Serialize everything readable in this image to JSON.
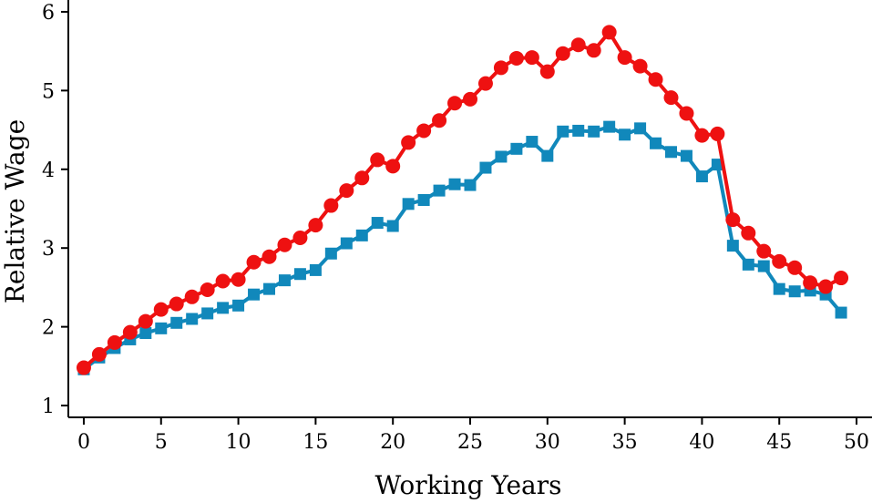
{
  "chart_data": {
    "type": "line",
    "xlabel": "Working Years",
    "ylabel": "Relative Wage",
    "xlim": [
      -1,
      51
    ],
    "ylim": [
      0.85,
      6.15
    ],
    "xticks": [
      0,
      5,
      10,
      15,
      20,
      25,
      30,
      35,
      40,
      45,
      50
    ],
    "yticks": [
      1,
      2,
      3,
      4,
      5,
      6
    ],
    "grid": false,
    "legend": "none",
    "x": [
      0,
      1,
      2,
      3,
      4,
      5,
      6,
      7,
      8,
      9,
      10,
      11,
      12,
      13,
      14,
      15,
      16,
      17,
      18,
      19,
      20,
      21,
      22,
      23,
      24,
      25,
      26,
      27,
      28,
      29,
      30,
      31,
      32,
      33,
      34,
      35,
      36,
      37,
      38,
      39,
      40,
      41,
      42,
      43,
      44,
      45,
      46,
      47,
      48,
      49
    ],
    "series": [
      {
        "color": "#ee1111",
        "marker": "circle",
        "values": [
          1.48,
          1.65,
          1.8,
          1.93,
          2.07,
          2.22,
          2.29,
          2.38,
          2.47,
          2.58,
          2.6,
          2.82,
          2.89,
          3.04,
          3.13,
          3.29,
          3.54,
          3.73,
          3.89,
          4.12,
          4.04,
          4.34,
          4.49,
          4.62,
          4.84,
          4.89,
          5.09,
          5.29,
          5.41,
          5.42,
          5.24,
          5.47,
          5.58,
          5.51,
          5.74,
          5.42,
          5.31,
          5.14,
          4.91,
          4.71,
          4.43,
          4.45,
          3.36,
          3.19,
          2.96,
          2.83,
          2.75,
          2.56,
          2.51,
          2.62
        ]
      },
      {
        "color": "#1188bb",
        "marker": "square",
        "values": [
          1.46,
          1.61,
          1.73,
          1.84,
          1.92,
          1.98,
          2.05,
          2.1,
          2.17,
          2.24,
          2.27,
          2.41,
          2.48,
          2.59,
          2.67,
          2.72,
          2.93,
          3.06,
          3.16,
          3.32,
          3.28,
          3.56,
          3.61,
          3.73,
          3.81,
          3.8,
          4.02,
          4.16,
          4.26,
          4.35,
          4.17,
          4.48,
          4.49,
          4.48,
          4.54,
          4.44,
          4.52,
          4.33,
          4.22,
          4.17,
          3.91,
          4.06,
          3.03,
          2.79,
          2.77,
          2.48,
          2.45,
          2.46,
          2.41,
          2.18
        ]
      }
    ]
  }
}
